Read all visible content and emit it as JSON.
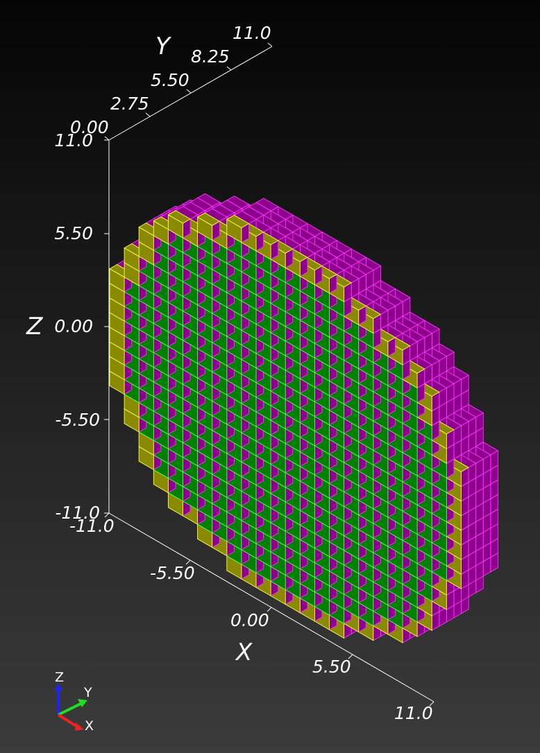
{
  "axes": {
    "x": {
      "title": "X",
      "ticks": [
        "-11.0",
        "-5.50",
        "0.00",
        "5.50",
        "11.0"
      ]
    },
    "y": {
      "title": "Y",
      "ticks": [
        "0.00",
        "2.75",
        "5.50",
        "8.25",
        "11.0"
      ]
    },
    "z": {
      "title": "Z",
      "ticks": [
        "11.0",
        "5.50",
        "0.00",
        "-5.50",
        "-11.0"
      ]
    }
  },
  "orientation_widget": {
    "z": "Z",
    "y": "Y",
    "x": "X"
  },
  "colors": {
    "outer_cells": "#8c008c",
    "outer_edges": "#ff33ff",
    "boundary_cells": "#8a8a00",
    "boundary_edges": "#ffff44",
    "inner_cells": "#008000",
    "inner_edges": "#55ff55",
    "axis_lines": "#ffffff",
    "widget_z": "#2222ff",
    "widget_y": "#22dd22",
    "widget_x": "#ee2222"
  }
}
